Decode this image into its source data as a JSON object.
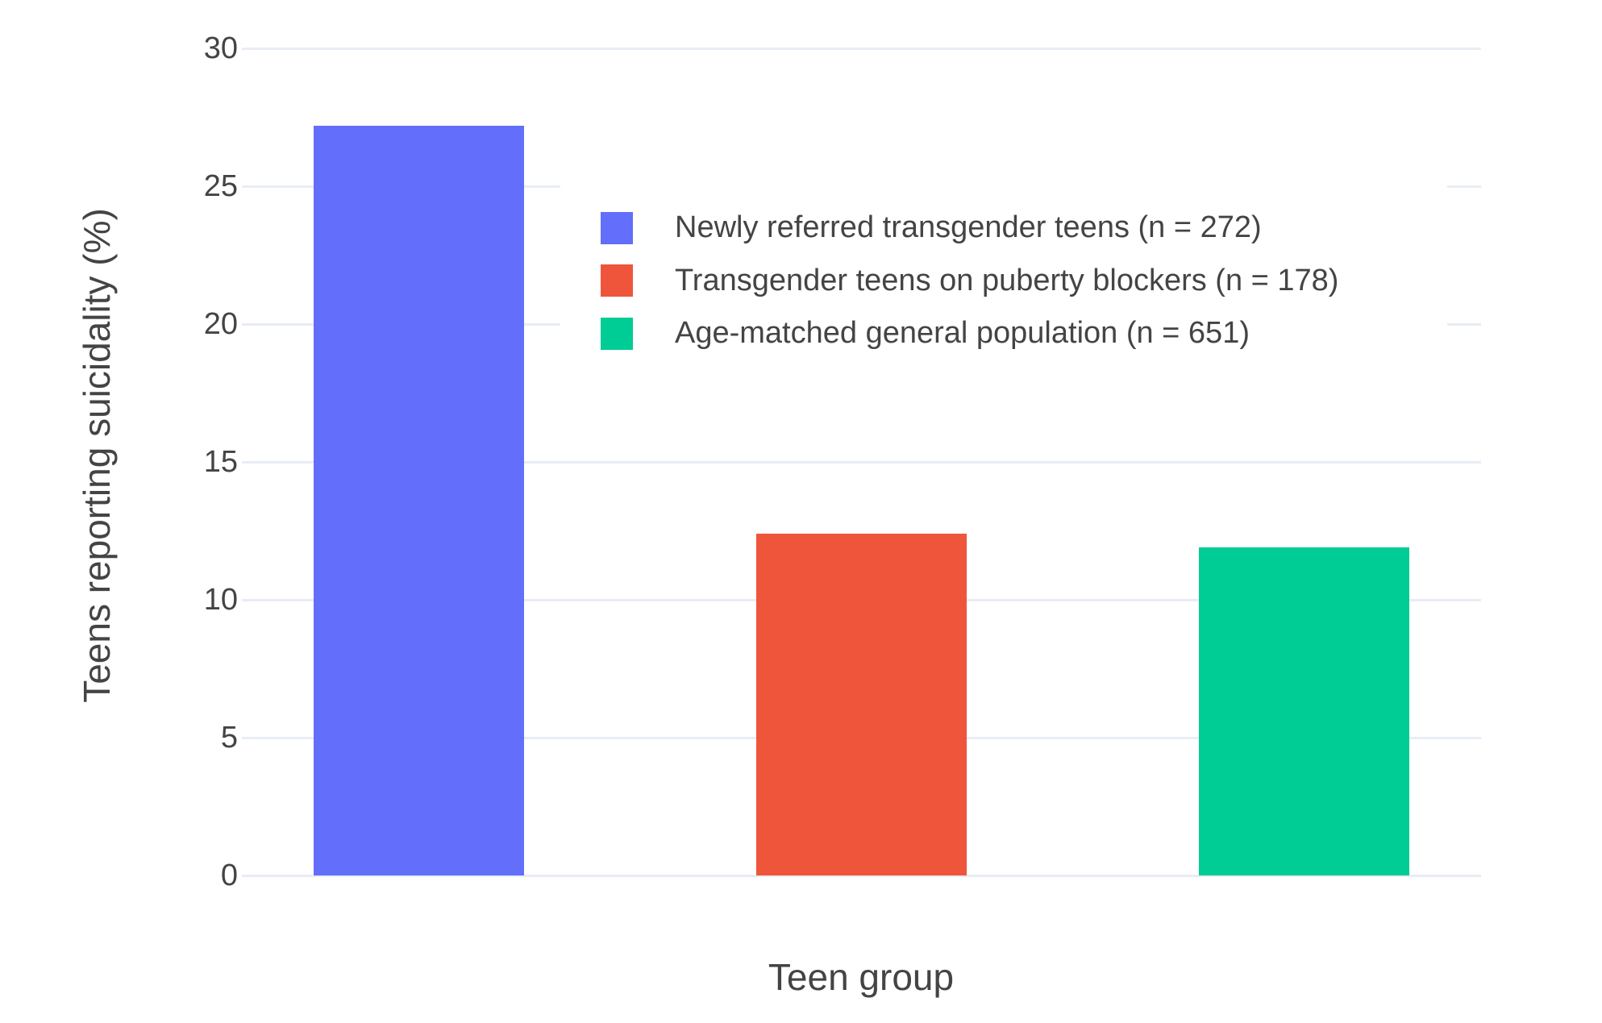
{
  "chart_data": {
    "type": "bar",
    "title": "",
    "xlabel": "Teen group",
    "ylabel": "Teens reporting suicidality (%)",
    "categories": [
      "Newly referred transgender teens (n = 272)",
      "Transgender teens on puberty blockers (n = 178)",
      "Age-matched general population (n = 651)"
    ],
    "values": [
      27.2,
      12.4,
      11.9
    ],
    "colors": [
      "#636EFA",
      "#EF553B",
      "#00CC96"
    ],
    "ylim": [
      0,
      30
    ],
    "yticks": [
      0,
      5,
      10,
      15,
      20,
      25,
      30
    ],
    "grid": true,
    "legend_position": "inside-top-center"
  },
  "style": {
    "grid_color": "#E8EDF5",
    "text_color": "#444444",
    "background_color": "#FFFFFF"
  }
}
